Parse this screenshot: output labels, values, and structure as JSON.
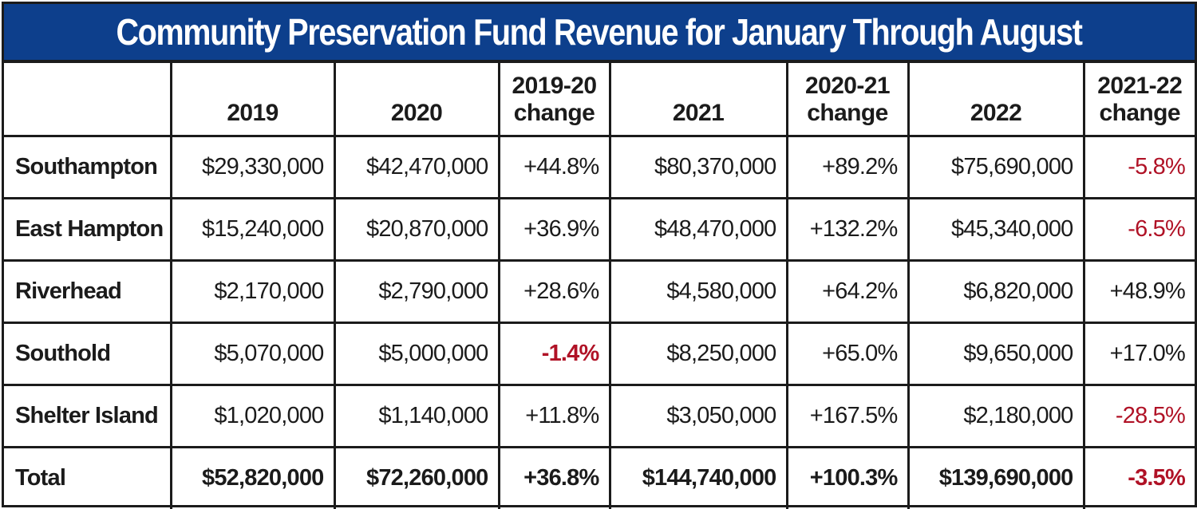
{
  "title": "Community Preservation Fund Revenue for January Through August",
  "colors": {
    "title_background": "#0d3f8c",
    "title_text": "#ffffff",
    "grid_lines": "#1b1b1b",
    "negative_change": "#b01226",
    "default_text": "#1b1b1b"
  },
  "chart_data": {
    "type": "table",
    "title": "Community Preservation Fund Revenue for January Through August",
    "columns": [
      {
        "key": "name",
        "label_lines": [
          ""
        ]
      },
      {
        "key": "y2019",
        "label_lines": [
          "2019"
        ]
      },
      {
        "key": "y2020",
        "label_lines": [
          "2020"
        ]
      },
      {
        "key": "ch1920",
        "label_lines": [
          "2019-20",
          "change"
        ]
      },
      {
        "key": "y2021",
        "label_lines": [
          "2021"
        ]
      },
      {
        "key": "ch2021",
        "label_lines": [
          "2020-21",
          "change"
        ]
      },
      {
        "key": "y2022",
        "label_lines": [
          "2022"
        ]
      },
      {
        "key": "ch2122",
        "label_lines": [
          "2021-22",
          "change"
        ]
      }
    ],
    "rows": [
      {
        "name": "Southampton",
        "y2019": "$29,330,000",
        "y2020": "$42,470,000",
        "ch1920": "+44.8%",
        "y2021": "$80,370,000",
        "ch2021": "+89.2%",
        "y2022": "$75,690,000",
        "ch2122": "-5.8%"
      },
      {
        "name": "East Hampton",
        "y2019": "$15,240,000",
        "y2020": "$20,870,000",
        "ch1920": "+36.9%",
        "y2021": "$48,470,000",
        "ch2021": "+132.2%",
        "y2022": "$45,340,000",
        "ch2122": "-6.5%"
      },
      {
        "name": "Riverhead",
        "y2019": "$2,170,000",
        "y2020": "$2,790,000",
        "ch1920": "+28.6%",
        "y2021": "$4,580,000",
        "ch2021": "+64.2%",
        "y2022": "$6,820,000",
        "ch2122": "+48.9%"
      },
      {
        "name": "Southold",
        "y2019": "$5,070,000",
        "y2020": "$5,000,000",
        "ch1920": "-1.4%",
        "y2021": "$8,250,000",
        "ch2021": "+65.0%",
        "y2022": "$9,650,000",
        "ch2122": "+17.0%"
      },
      {
        "name": "Shelter Island",
        "y2019": "$1,020,000",
        "y2020": "$1,140,000",
        "ch1920": "+11.8%",
        "y2021": "$3,050,000",
        "ch2021": "+167.5%",
        "y2022": "$2,180,000",
        "ch2122": "-28.5%"
      },
      {
        "name": "Total",
        "y2019": "$52,820,000",
        "y2020": "$72,260,000",
        "ch1920": "+36.8%",
        "y2021": "$144,740,000",
        "ch2021": "+100.3%",
        "y2022": "$139,690,000",
        "ch2122": "-3.5%"
      }
    ]
  }
}
